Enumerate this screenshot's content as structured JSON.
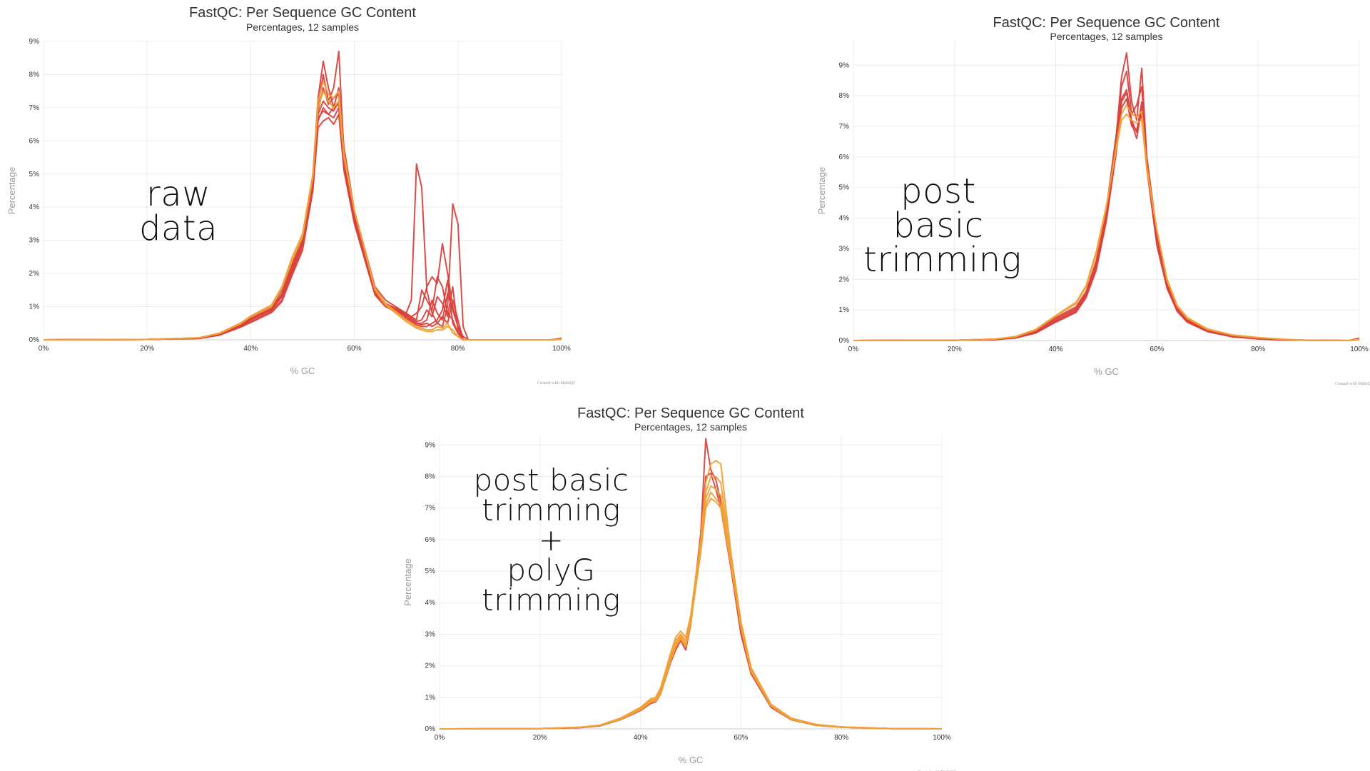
{
  "colors": {
    "red": "#d9413d",
    "orange": "#f0a035",
    "grid": "#ececec"
  },
  "chart_data": [
    {
      "type": "line",
      "title": "FastQC: Per Sequence GC Content",
      "subtitle": "Percentages, 12 samples",
      "xlabel": "% GC",
      "ylabel": "Percentage",
      "xlim": [
        0,
        100
      ],
      "ylim": [
        0,
        9
      ],
      "xticks": [
        "0%",
        "20%",
        "40%",
        "60%",
        "80%",
        "100%"
      ],
      "yticks": [
        "0%",
        "1%",
        "2%",
        "3%",
        "4%",
        "5%",
        "6%",
        "7%",
        "8%",
        "9%"
      ],
      "credit": "Created with MultiQC",
      "annotation": [
        "raw data"
      ],
      "series_x": [
        0,
        20,
        30,
        34,
        38,
        40,
        44,
        46,
        48,
        50,
        52,
        53,
        54,
        55,
        56,
        57,
        58,
        60,
        64,
        66,
        68,
        70,
        71,
        72,
        73,
        74,
        75,
        76,
        77,
        78,
        79,
        80,
        81,
        82,
        84,
        90,
        98,
        100
      ],
      "series": [
        {
          "color": "red",
          "values": [
            0,
            0.01,
            0.06,
            0.2,
            0.5,
            0.7,
            1.0,
            1.5,
            2.3,
            3.1,
            5.0,
            7.3,
            8.4,
            7.6,
            7.0,
            7.6,
            5.8,
            3.9,
            1.6,
            1.2,
            1.0,
            0.8,
            1.2,
            5.3,
            4.6,
            1.5,
            0.8,
            0.5,
            0.4,
            1.0,
            4.1,
            3.5,
            0.4,
            0.0,
            0,
            0,
            0,
            0.05
          ]
        },
        {
          "color": "red",
          "values": [
            0,
            0.01,
            0.05,
            0.18,
            0.45,
            0.65,
            0.95,
            1.4,
            2.2,
            3.0,
            4.9,
            7.1,
            8.0,
            7.2,
            7.6,
            8.7,
            5.6,
            3.8,
            1.5,
            1.1,
            0.9,
            0.75,
            0.7,
            0.8,
            1.0,
            1.6,
            1.9,
            1.7,
            2.9,
            2.0,
            1.0,
            0.4,
            0.1,
            0,
            0,
            0,
            0,
            0.04
          ]
        },
        {
          "color": "red",
          "values": [
            0,
            0.01,
            0.05,
            0.16,
            0.42,
            0.6,
            0.9,
            1.3,
            2.1,
            2.9,
            4.8,
            6.9,
            7.6,
            7.1,
            7.3,
            7.4,
            5.4,
            3.7,
            1.5,
            1.1,
            0.95,
            0.8,
            0.7,
            0.6,
            1.5,
            1.2,
            0.9,
            1.9,
            1.6,
            0.8,
            0.6,
            0.2,
            0,
            0,
            0,
            0,
            0,
            0.03
          ]
        },
        {
          "color": "red",
          "values": [
            0,
            0.01,
            0.04,
            0.15,
            0.4,
            0.55,
            0.85,
            1.2,
            2.0,
            2.8,
            4.6,
            6.6,
            7.0,
            6.8,
            6.7,
            7.0,
            5.2,
            3.6,
            1.4,
            1.05,
            0.9,
            0.7,
            0.6,
            0.5,
            0.5,
            0.6,
            1.2,
            0.8,
            0.6,
            1.4,
            0.9,
            0.4,
            0,
            0,
            0,
            0,
            0,
            0.03
          ]
        },
        {
          "color": "red",
          "values": [
            0,
            0.01,
            0.05,
            0.17,
            0.44,
            0.62,
            0.92,
            1.35,
            2.15,
            2.95,
            4.7,
            6.8,
            7.2,
            7.0,
            6.9,
            7.2,
            5.3,
            3.7,
            1.45,
            1.08,
            0.92,
            0.78,
            0.65,
            0.55,
            0.6,
            0.9,
            0.7,
            1.3,
            1.1,
            0.7,
            1.6,
            0.3,
            0,
            0,
            0,
            0,
            0,
            0.03
          ]
        },
        {
          "color": "red",
          "values": [
            0,
            0.01,
            0.04,
            0.14,
            0.38,
            0.52,
            0.82,
            1.15,
            1.95,
            2.7,
            4.5,
            6.4,
            6.6,
            6.7,
            6.5,
            6.8,
            5.1,
            3.5,
            1.35,
            1.0,
            0.85,
            0.65,
            0.55,
            0.45,
            0.4,
            0.4,
            0.5,
            0.6,
            0.9,
            1.8,
            0.5,
            0.2,
            0,
            0,
            0,
            0,
            0,
            0.02
          ]
        },
        {
          "color": "red",
          "values": [
            0,
            0.01,
            0.05,
            0.16,
            0.43,
            0.6,
            0.9,
            1.3,
            2.1,
            2.9,
            4.8,
            6.7,
            6.9,
            6.8,
            7.0,
            7.1,
            5.4,
            3.6,
            1.45,
            1.07,
            0.9,
            0.72,
            0.6,
            0.5,
            0.45,
            0.5,
            0.4,
            0.5,
            0.7,
            0.5,
            1.2,
            0.6,
            0,
            0,
            0,
            0,
            0,
            0.03
          ]
        },
        {
          "color": "orange",
          "values": [
            0,
            0.01,
            0.06,
            0.2,
            0.5,
            0.72,
            1.05,
            1.6,
            2.5,
            3.2,
            5.0,
            7.0,
            7.5,
            7.2,
            7.0,
            7.2,
            5.5,
            3.9,
            1.55,
            1.1,
            0.85,
            0.6,
            0.5,
            0.4,
            0.35,
            0.3,
            0.3,
            0.4,
            0.35,
            0.5,
            0.2,
            0.1,
            0,
            0,
            0,
            0,
            0,
            0.02
          ]
        },
        {
          "color": "orange",
          "values": [
            0,
            0.01,
            0.06,
            0.19,
            0.48,
            0.7,
            1.0,
            1.55,
            2.4,
            3.1,
            4.9,
            7.2,
            7.8,
            7.4,
            7.3,
            7.5,
            5.6,
            3.9,
            1.5,
            1.05,
            0.8,
            0.55,
            0.45,
            0.35,
            0.3,
            0.25,
            0.25,
            0.3,
            0.3,
            0.4,
            0.3,
            0.1,
            0,
            0,
            0,
            0,
            0,
            0.02
          ]
        }
      ]
    },
    {
      "type": "line",
      "title": "FastQC: Per Sequence GC Content",
      "subtitle": "Percentages, 12 samples",
      "xlabel": "% GC",
      "ylabel": "Percentage",
      "xlim": [
        0,
        100
      ],
      "ylim": [
        0,
        9.8
      ],
      "xticks": [
        "0%",
        "20%",
        "40%",
        "60%",
        "80%",
        "100%"
      ],
      "yticks": [
        "0%",
        "1%",
        "2%",
        "3%",
        "4%",
        "5%",
        "6%",
        "7%",
        "8%",
        "9%"
      ],
      "credit": "Created with MultiQC",
      "annotation": [
        "post basic",
        "trimming"
      ],
      "series_x": [
        0,
        20,
        28,
        32,
        36,
        40,
        44,
        46,
        48,
        50,
        52,
        53,
        54,
        55,
        56,
        57,
        58,
        60,
        62,
        64,
        66,
        70,
        75,
        80,
        85,
        90,
        98,
        100
      ],
      "series": [
        {
          "color": "red",
          "values": [
            0,
            0.01,
            0.04,
            0.1,
            0.3,
            0.75,
            1.1,
            1.6,
            2.6,
            4.3,
            6.8,
            8.6,
            9.4,
            7.8,
            7.2,
            8.9,
            6.0,
            3.5,
            1.9,
            1.1,
            0.7,
            0.35,
            0.15,
            0.08,
            0.03,
            0.01,
            0,
            0.08
          ]
        },
        {
          "color": "red",
          "values": [
            0,
            0.01,
            0.04,
            0.1,
            0.28,
            0.7,
            1.05,
            1.55,
            2.5,
            4.2,
            6.6,
            8.3,
            8.8,
            7.4,
            7.7,
            8.3,
            5.9,
            3.4,
            1.85,
            1.05,
            0.68,
            0.33,
            0.14,
            0.07,
            0.03,
            0.01,
            0,
            0.07
          ]
        },
        {
          "color": "red",
          "values": [
            0,
            0.01,
            0.03,
            0.09,
            0.26,
            0.65,
            1.0,
            1.5,
            2.4,
            4.1,
            6.5,
            7.9,
            8.2,
            7.1,
            6.6,
            7.6,
            5.8,
            3.3,
            1.8,
            1.0,
            0.65,
            0.32,
            0.13,
            0.06,
            0.02,
            0.01,
            0,
            0.06
          ]
        },
        {
          "color": "red",
          "values": [
            0,
            0.01,
            0.03,
            0.09,
            0.25,
            0.62,
            0.95,
            1.45,
            2.35,
            4.0,
            6.3,
            7.6,
            7.9,
            7.0,
            6.9,
            7.4,
            5.7,
            3.2,
            1.75,
            0.98,
            0.62,
            0.3,
            0.12,
            0.06,
            0.02,
            0.01,
            0,
            0.05
          ]
        },
        {
          "color": "red",
          "values": [
            0,
            0.01,
            0.03,
            0.08,
            0.24,
            0.6,
            0.92,
            1.4,
            2.3,
            3.9,
            6.2,
            7.8,
            8.1,
            7.2,
            6.8,
            7.8,
            5.6,
            3.1,
            1.7,
            0.95,
            0.6,
            0.29,
            0.12,
            0.05,
            0.02,
            0.01,
            0,
            0.05
          ]
        },
        {
          "color": "orange",
          "values": [
            0,
            0.01,
            0.05,
            0.13,
            0.36,
            0.82,
            1.25,
            1.8,
            2.9,
            4.4,
            6.3,
            7.2,
            7.4,
            7.2,
            7.1,
            7.2,
            5.6,
            3.6,
            2.0,
            1.15,
            0.75,
            0.38,
            0.18,
            0.1,
            0.04,
            0.01,
            0,
            0.04
          ]
        },
        {
          "color": "orange",
          "values": [
            0,
            0.01,
            0.05,
            0.12,
            0.34,
            0.8,
            1.2,
            1.75,
            2.8,
            4.35,
            6.4,
            7.4,
            7.7,
            7.4,
            7.3,
            7.5,
            5.7,
            3.6,
            1.95,
            1.12,
            0.72,
            0.36,
            0.17,
            0.09,
            0.04,
            0.01,
            0,
            0.04
          ]
        }
      ]
    },
    {
      "type": "line",
      "title": "FastQC: Per Sequence GC Content",
      "subtitle": "Percentages, 12 samples",
      "xlabel": "% GC",
      "ylabel": "Percentage",
      "xlim": [
        0,
        100
      ],
      "ylim": [
        0,
        9.3
      ],
      "xticks": [
        "0%",
        "20%",
        "40%",
        "60%",
        "80%",
        "100%"
      ],
      "yticks": [
        "0%",
        "1%",
        "2%",
        "3%",
        "4%",
        "5%",
        "6%",
        "7%",
        "8%",
        "9%"
      ],
      "credit": "Created with MultiQC",
      "annotation": [
        "post basic",
        "trimming +",
        "polyG",
        "trimming"
      ],
      "series_x": [
        0,
        20,
        28,
        32,
        36,
        40,
        42,
        43,
        44,
        46,
        47,
        48,
        49,
        50,
        52,
        53,
        54,
        55,
        56,
        58,
        60,
        62,
        66,
        70,
        75,
        80,
        90,
        100
      ],
      "series": [
        {
          "color": "red",
          "values": [
            0,
            0.01,
            0.04,
            0.1,
            0.3,
            0.6,
            0.85,
            0.9,
            1.2,
            2.2,
            2.6,
            2.9,
            2.6,
            3.4,
            6.2,
            9.2,
            8.2,
            7.9,
            7.2,
            5.2,
            3.1,
            1.8,
            0.7,
            0.3,
            0.12,
            0.05,
            0.01,
            0
          ]
        },
        {
          "color": "red",
          "values": [
            0,
            0.01,
            0.04,
            0.1,
            0.29,
            0.58,
            0.8,
            0.85,
            1.1,
            2.1,
            2.5,
            2.8,
            2.5,
            3.3,
            6.0,
            8.0,
            8.1,
            7.6,
            7.0,
            5.1,
            3.0,
            1.75,
            0.68,
            0.29,
            0.11,
            0.05,
            0.01,
            0
          ]
        },
        {
          "color": "orange",
          "values": [
            0,
            0.01,
            0.05,
            0.12,
            0.34,
            0.68,
            0.95,
            1.0,
            1.3,
            2.4,
            2.9,
            3.1,
            2.9,
            3.6,
            6.0,
            7.8,
            8.4,
            8.5,
            8.4,
            5.6,
            3.4,
            1.95,
            0.78,
            0.34,
            0.14,
            0.06,
            0.01,
            0
          ]
        },
        {
          "color": "orange",
          "values": [
            0,
            0.01,
            0.05,
            0.12,
            0.33,
            0.66,
            0.9,
            0.95,
            1.25,
            2.3,
            2.8,
            3.0,
            2.8,
            3.5,
            5.9,
            7.5,
            8.0,
            8.0,
            7.8,
            5.5,
            3.35,
            1.9,
            0.76,
            0.33,
            0.13,
            0.06,
            0.01,
            0
          ]
        },
        {
          "color": "orange",
          "values": [
            0,
            0.01,
            0.05,
            0.11,
            0.32,
            0.64,
            0.88,
            0.92,
            1.2,
            2.25,
            2.7,
            2.95,
            2.7,
            3.45,
            5.8,
            7.3,
            7.7,
            7.6,
            7.4,
            5.4,
            3.3,
            1.88,
            0.75,
            0.32,
            0.13,
            0.06,
            0.01,
            0
          ]
        },
        {
          "color": "orange",
          "values": [
            0,
            0.01,
            0.05,
            0.11,
            0.31,
            0.62,
            0.86,
            0.9,
            1.15,
            2.2,
            2.65,
            2.9,
            2.65,
            3.4,
            5.7,
            7.1,
            7.5,
            7.3,
            7.1,
            5.3,
            3.25,
            1.85,
            0.74,
            0.31,
            0.12,
            0.05,
            0.01,
            0
          ]
        },
        {
          "color": "orange",
          "values": [
            0,
            0.01,
            0.05,
            0.11,
            0.3,
            0.6,
            0.84,
            0.88,
            1.1,
            2.15,
            2.6,
            2.85,
            2.6,
            3.35,
            5.6,
            7.0,
            7.3,
            7.2,
            7.0,
            5.2,
            3.2,
            1.82,
            0.72,
            0.3,
            0.12,
            0.05,
            0.01,
            0
          ]
        }
      ]
    }
  ]
}
